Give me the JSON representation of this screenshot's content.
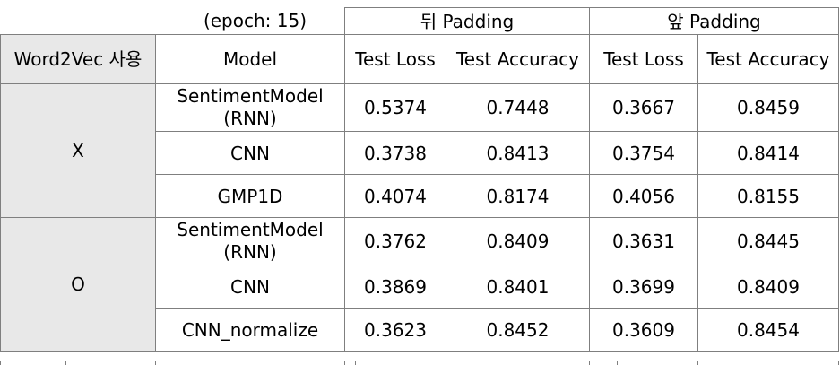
{
  "table": {
    "epoch_label": "(epoch: 15)",
    "group_headers": [
      "뒤 Padding",
      "앞 Padding"
    ],
    "column_headers": {
      "word2vec": "Word2Vec 사용",
      "model": "Model",
      "back_test_loss": "Test Loss",
      "back_test_accuracy": "Test Accuracy",
      "front_test_loss": "Test Loss",
      "front_test_accuracy": "Test Accuracy"
    },
    "groups": [
      {
        "word2vec": "X",
        "rows": [
          {
            "model": "SentimentModel (RNN)",
            "back_loss": "0.5374",
            "back_acc": "0.7448",
            "front_loss": "0.3667",
            "front_acc": "0.8459"
          },
          {
            "model": "CNN",
            "back_loss": "0.3738",
            "back_acc": "0.8413",
            "front_loss": "0.3754",
            "front_acc": "0.8414"
          },
          {
            "model": "GMP1D",
            "back_loss": "0.4074",
            "back_acc": "0.8174",
            "front_loss": "0.4056",
            "front_acc": "0.8155"
          }
        ]
      },
      {
        "word2vec": "O",
        "rows": [
          {
            "model": "SentimentModel (RNN)",
            "back_loss": "0.3762",
            "back_acc": "0.8409",
            "front_loss": "0.3631",
            "front_acc": "0.8445"
          },
          {
            "model": "CNN",
            "back_loss": "0.3869",
            "back_acc": "0.8401",
            "front_loss": "0.3699",
            "front_acc": "0.8409"
          },
          {
            "model": "CNN_normalize",
            "back_loss": "0.3623",
            "back_acc": "0.8452",
            "front_loss": "0.3609",
            "front_acc": "0.8454"
          }
        ]
      }
    ]
  }
}
